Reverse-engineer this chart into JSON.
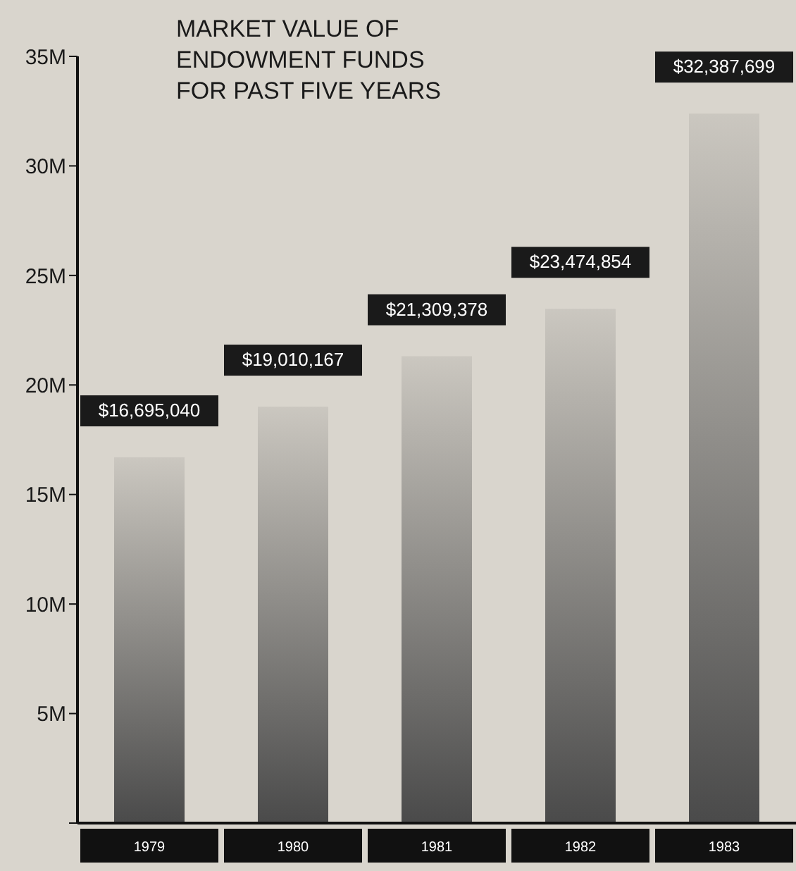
{
  "chart_data": {
    "type": "bar",
    "title": "MARKET VALUE OF ENDOWMENT FUNDS FOR PAST FIVE YEARS",
    "categories": [
      "1979",
      "1980",
      "1981",
      "1982",
      "1983"
    ],
    "values": [
      16695040,
      19010167,
      21309378,
      23474854,
      32387699
    ],
    "value_labels": [
      "$16,695,040",
      "$19,010,167",
      "$21,309,378",
      "$23,474,854",
      "$32,387,699"
    ],
    "color": "#4a4a4a",
    "ylim": [
      0,
      35000000
    ],
    "yticks": [
      {
        "value": 0,
        "label": null
      },
      {
        "value": 5000000,
        "label": "5M"
      },
      {
        "value": 10000000,
        "label": "10M"
      },
      {
        "value": 15000000,
        "label": "15M"
      },
      {
        "value": 20000000,
        "label": "20M"
      },
      {
        "value": 25000000,
        "label": "25M"
      },
      {
        "value": 30000000,
        "label": "30M"
      },
      {
        "value": 35000000,
        "label": "35M"
      }
    ],
    "grid": false,
    "legend": false
  }
}
